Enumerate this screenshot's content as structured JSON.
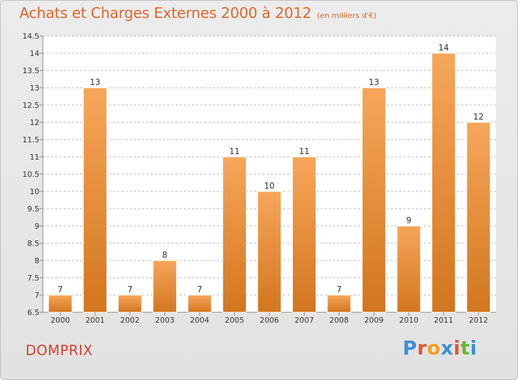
{
  "title": "Achats et Charges Externes 2000 à 2012",
  "subtitle": "(en milliers d'€)",
  "place": "DOMPRIX",
  "brand": {
    "text": "Proxiti",
    "colors": [
      "#3a8fd6",
      "#e8542f",
      "#f0a020",
      "#3a8fd6",
      "#e8542f",
      "#69b33a",
      "#3a8fd6"
    ]
  },
  "colors": {
    "title": "#e0672a",
    "place": "#d93f2a",
    "bar_light": "#f7a65a",
    "bar_dark": "#d2761e",
    "grid": "#b5b5b5",
    "axis_text": "#333333"
  },
  "chart_data": {
    "type": "bar",
    "categories": [
      "2000",
      "2001",
      "2002",
      "2003",
      "2004",
      "2005",
      "2006",
      "2007",
      "2008",
      "2009",
      "2010",
      "2011",
      "2012"
    ],
    "values": [
      7,
      13,
      7,
      8,
      7,
      11,
      10,
      11,
      7,
      13,
      9,
      14,
      12
    ],
    "data_labels": [
      "7",
      "13",
      "7",
      "8",
      "7",
      "11",
      "10",
      "11",
      "7",
      "13",
      "9",
      "14",
      "12"
    ],
    "yticks": [
      "6.5",
      "7",
      "7.5",
      "8",
      "8.5",
      "9",
      "9.5",
      "10",
      "10.5",
      "11",
      "11.5",
      "12",
      "12.5",
      "13",
      "13.5",
      "14",
      "14.5"
    ],
    "ylim": [
      6.5,
      14.5
    ],
    "grid": "horizontal dashed",
    "legend": "none"
  }
}
